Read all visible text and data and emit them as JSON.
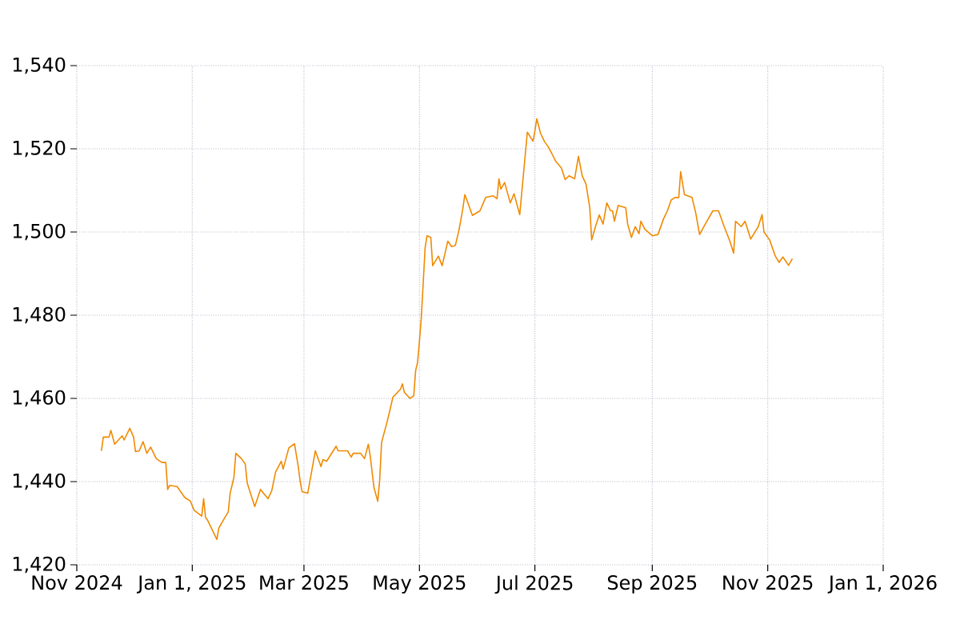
{
  "chart_data": {
    "type": "line",
    "color": "#f08a00",
    "marker": "none",
    "grid": true,
    "xlim": [
      "2024-11-01",
      "2026-01-01"
    ],
    "xticks": [
      {
        "value": "2024-11-01",
        "label": "Nov 2024"
      },
      {
        "value": "2025-01-01",
        "label": "Jan 1, 2025"
      },
      {
        "value": "2025-03-01",
        "label": "Mar 2025"
      },
      {
        "value": "2025-05-01",
        "label": "May 2025"
      },
      {
        "value": "2025-07-01",
        "label": "Jul 2025"
      },
      {
        "value": "2025-09-01",
        "label": "Sep 2025"
      },
      {
        "value": "2025-11-01",
        "label": "Nov 2025"
      },
      {
        "value": "2026-01-01",
        "label": "Jan 1, 2026"
      }
    ],
    "ylim": [
      1420,
      1540
    ],
    "yticks": [
      {
        "value": 1420,
        "label": "1,420"
      },
      {
        "value": 1440,
        "label": "1,440"
      },
      {
        "value": 1460,
        "label": "1,460"
      },
      {
        "value": 1480,
        "label": "1,480"
      },
      {
        "value": 1500,
        "label": "1,500"
      },
      {
        "value": 1520,
        "label": "1,520"
      },
      {
        "value": 1540,
        "label": "1,540"
      }
    ],
    "x": [
      "2024-11-14",
      "2024-11-15",
      "2024-11-18",
      "2024-11-19",
      "2024-11-21",
      "2024-11-25",
      "2024-11-26",
      "2024-11-29",
      "2024-12-01",
      "2024-12-02",
      "2024-12-04",
      "2024-12-06",
      "2024-12-08",
      "2024-12-10",
      "2024-12-13",
      "2024-12-16",
      "2024-12-18",
      "2024-12-19",
      "2024-12-20",
      "2024-12-24",
      "2024-12-28",
      "2024-12-31",
      "2025-01-02",
      "2025-01-06",
      "2025-01-07",
      "2025-01-08",
      "2025-01-09",
      "2025-01-14",
      "2025-01-15",
      "2025-01-17",
      "2025-01-20",
      "2025-01-21",
      "2025-01-23",
      "2025-01-24",
      "2025-01-27",
      "2025-01-29",
      "2025-01-30",
      "2025-02-03",
      "2025-02-06",
      "2025-02-10",
      "2025-02-12",
      "2025-02-14",
      "2025-02-17",
      "2025-02-18",
      "2025-02-21",
      "2025-02-24",
      "2025-02-26",
      "2025-02-27",
      "2025-02-28",
      "2025-03-03",
      "2025-03-05",
      "2025-03-07",
      "2025-03-10",
      "2025-03-11",
      "2025-03-13",
      "2025-03-18",
      "2025-03-19",
      "2025-03-24",
      "2025-03-26",
      "2025-03-27",
      "2025-03-31",
      "2025-04-02",
      "2025-04-04",
      "2025-04-05",
      "2025-04-07",
      "2025-04-09",
      "2025-04-10",
      "2025-04-11",
      "2025-04-14",
      "2025-04-15",
      "2025-04-17",
      "2025-04-21",
      "2025-04-22",
      "2025-04-23",
      "2025-04-26",
      "2025-04-28",
      "2025-04-29",
      "2025-04-30",
      "2025-05-01",
      "2025-05-02",
      "2025-05-03",
      "2025-05-04",
      "2025-05-05",
      "2025-05-07",
      "2025-05-08",
      "2025-05-11",
      "2025-05-13",
      "2025-05-16",
      "2025-05-18",
      "2025-05-20",
      "2025-05-22",
      "2025-05-24",
      "2025-05-25",
      "2025-05-29",
      "2025-06-02",
      "2025-06-05",
      "2025-06-09",
      "2025-06-11",
      "2025-06-12",
      "2025-06-13",
      "2025-06-15",
      "2025-06-18",
      "2025-06-20",
      "2025-06-22",
      "2025-06-23",
      "2025-06-25",
      "2025-06-27",
      "2025-06-30",
      "2025-07-01",
      "2025-07-02",
      "2025-07-04",
      "2025-07-06",
      "2025-07-08",
      "2025-07-10",
      "2025-07-12",
      "2025-07-15",
      "2025-07-17",
      "2025-07-19",
      "2025-07-22",
      "2025-07-24",
      "2025-07-26",
      "2025-07-28",
      "2025-07-30",
      "2025-07-31",
      "2025-08-02",
      "2025-08-04",
      "2025-08-06",
      "2025-08-08",
      "2025-08-10",
      "2025-08-11",
      "2025-08-12",
      "2025-08-14",
      "2025-08-18",
      "2025-08-19",
      "2025-08-21",
      "2025-08-23",
      "2025-08-25",
      "2025-08-26",
      "2025-08-28",
      "2025-09-01",
      "2025-09-04",
      "2025-09-07",
      "2025-09-09",
      "2025-09-11",
      "2025-09-13",
      "2025-09-15",
      "2025-09-16",
      "2025-09-18",
      "2025-09-22",
      "2025-09-24",
      "2025-09-26",
      "2025-09-29",
      "2025-10-03",
      "2025-10-06",
      "2025-10-09",
      "2025-10-12",
      "2025-10-14",
      "2025-10-15",
      "2025-10-18",
      "2025-10-20",
      "2025-10-23",
      "2025-10-27",
      "2025-10-29",
      "2025-10-30",
      "2025-11-02",
      "2025-11-05",
      "2025-11-07",
      "2025-11-09",
      "2025-11-12",
      "2025-11-14"
    ],
    "values": [
      1447.4,
      1450.7,
      1450.7,
      1452.3,
      1449.0,
      1451.0,
      1450.0,
      1452.8,
      1450.7,
      1447.2,
      1447.4,
      1449.6,
      1446.8,
      1448.3,
      1445.5,
      1444.6,
      1444.6,
      1438.1,
      1439.1,
      1438.8,
      1436.2,
      1435.3,
      1433.1,
      1431.7,
      1435.9,
      1431.4,
      1430.8,
      1426.1,
      1428.8,
      1430.4,
      1432.7,
      1437.2,
      1441.0,
      1446.8,
      1445.5,
      1444.2,
      1439.7,
      1434.0,
      1438.1,
      1435.9,
      1437.8,
      1442.3,
      1444.9,
      1443.0,
      1448.1,
      1449.1,
      1443.6,
      1440.1,
      1437.6,
      1437.2,
      1442.3,
      1447.4,
      1443.6,
      1445.3,
      1444.9,
      1448.5,
      1447.4,
      1447.4,
      1445.9,
      1446.8,
      1446.8,
      1445.5,
      1449.0,
      1446.2,
      1438.5,
      1435.3,
      1440.4,
      1449.4,
      1454.5,
      1456.4,
      1460.3,
      1462.2,
      1463.5,
      1461.5,
      1460.0,
      1460.6,
      1466.7,
      1468.6,
      1473.7,
      1479.5,
      1487.8,
      1496.2,
      1499.1,
      1498.7,
      1491.9,
      1494.2,
      1491.9,
      1497.8,
      1496.5,
      1496.8,
      1500.7,
      1505.8,
      1509.0,
      1504.0,
      1505.1,
      1508.3,
      1508.7,
      1508.0,
      1512.8,
      1510.3,
      1511.9,
      1507.0,
      1509.2,
      1505.8,
      1504.2,
      1514.1,
      1524.0,
      1521.8,
      1524.3,
      1527.2,
      1523.7,
      1521.8,
      1520.5,
      1518.8,
      1517.0,
      1515.4,
      1512.6,
      1513.5,
      1512.8,
      1518.2,
      1513.5,
      1511.5,
      1505.8,
      1498.1,
      1501.3,
      1504.1,
      1501.9,
      1507.0,
      1505.1,
      1505.1,
      1502.6,
      1506.4,
      1505.8,
      1501.9,
      1498.7,
      1501.3,
      1499.6,
      1502.6,
      1500.7,
      1499.1,
      1499.4,
      1503.2,
      1505.1,
      1507.7,
      1508.3,
      1508.3,
      1514.5,
      1509.0,
      1508.3,
      1504.5,
      1499.4,
      1501.9,
      1505.1,
      1505.1,
      1501.3,
      1497.8,
      1494.9,
      1502.6,
      1501.3,
      1502.6,
      1498.3,
      1501.3,
      1504.2,
      1500.0,
      1498.1,
      1494.2,
      1492.7,
      1494.0,
      1492.0,
      1493.6
    ]
  }
}
